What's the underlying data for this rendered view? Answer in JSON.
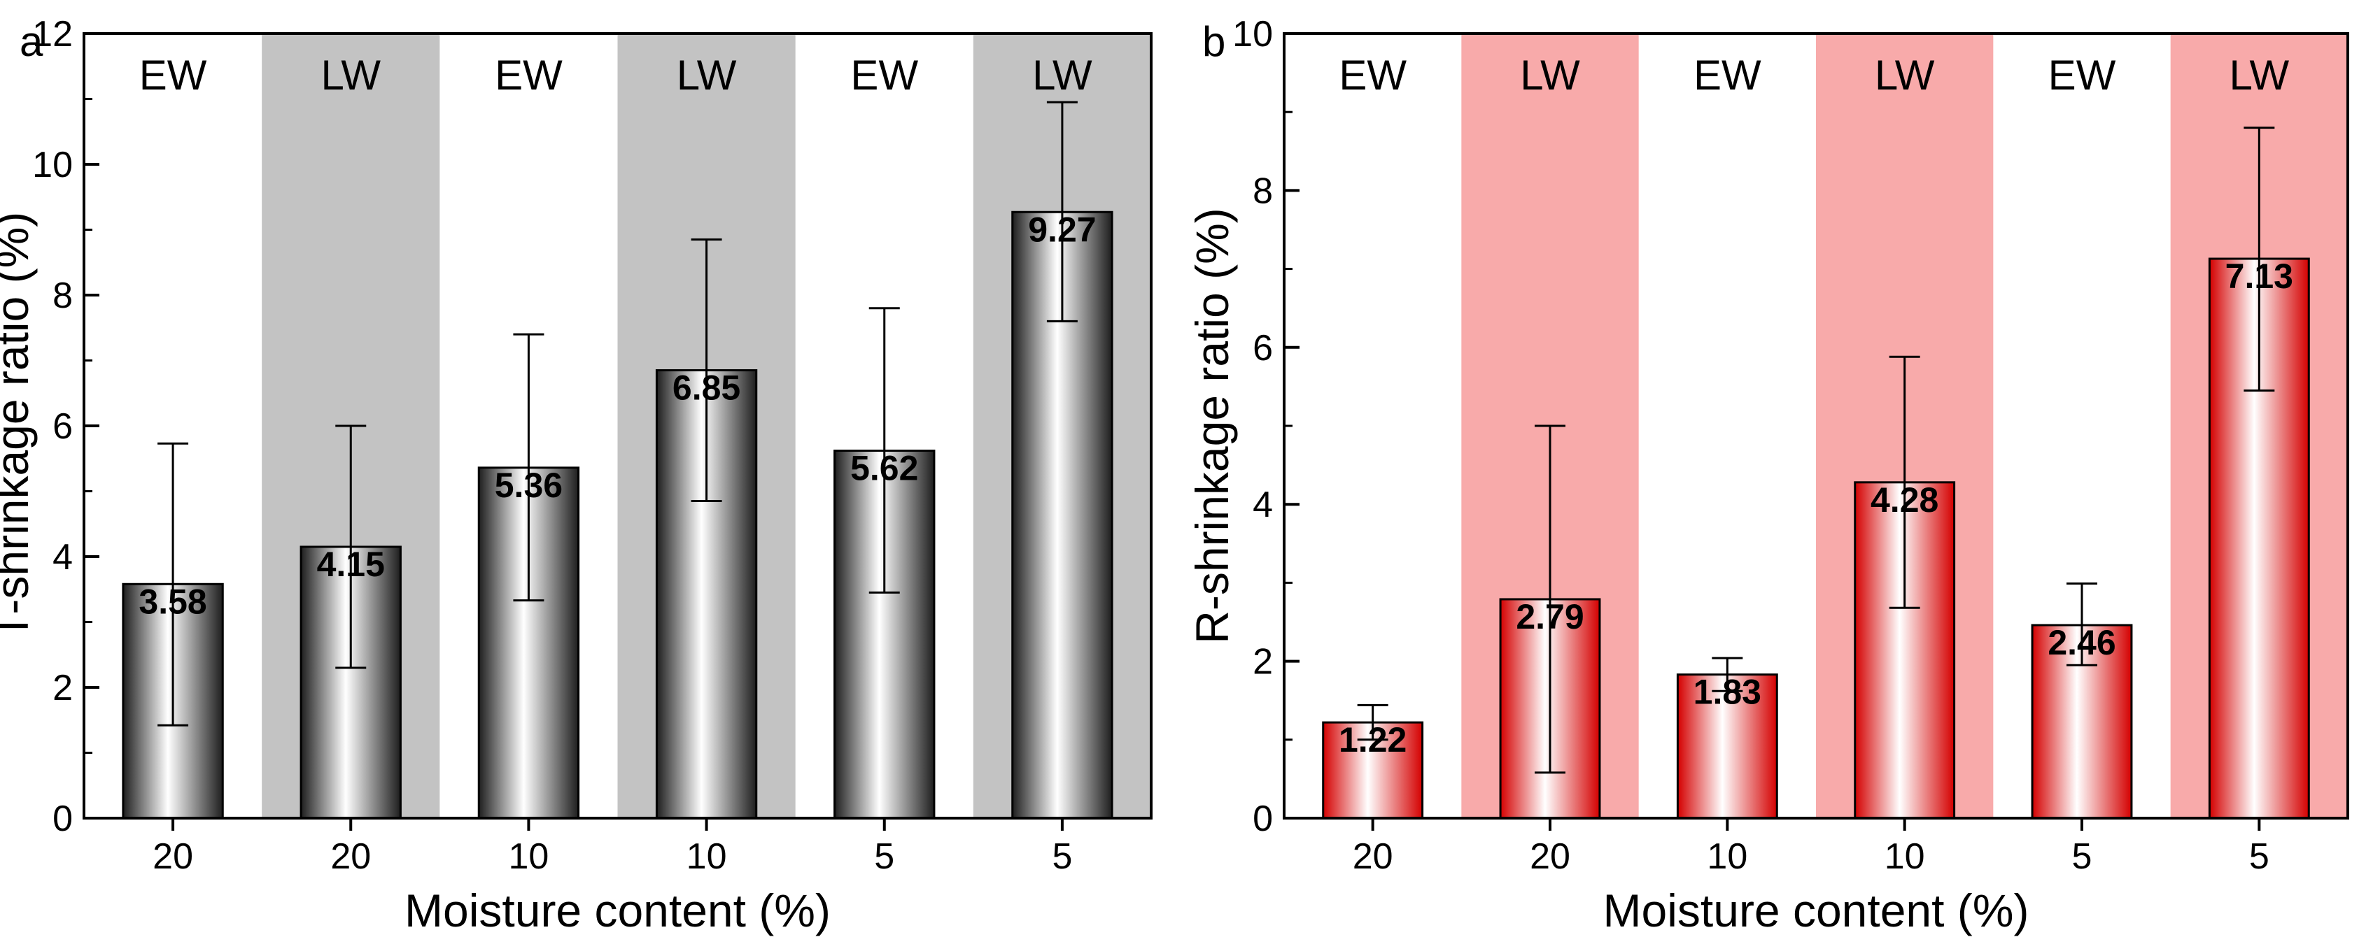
{
  "chart_data": [
    {
      "type": "bar",
      "panel_label": "a",
      "categories": [
        "20",
        "20",
        "10",
        "10",
        "5",
        "5"
      ],
      "band_labels": [
        "EW",
        "LW",
        "EW",
        "LW",
        "EW",
        "LW"
      ],
      "values": [
        3.58,
        4.15,
        5.36,
        6.85,
        5.62,
        9.27
      ],
      "value_labels": [
        "3.58",
        "4.15",
        "5.36",
        "6.85",
        "5.62",
        "9.27"
      ],
      "error_low": [
        1.42,
        2.3,
        3.33,
        4.85,
        3.45,
        7.6
      ],
      "error_high": [
        5.73,
        6.0,
        7.4,
        8.85,
        7.8,
        10.95
      ],
      "xlabel": "Moisture content (%)",
      "ylabel": "T-shrinkage ratio (%)",
      "ylim": [
        0,
        12
      ],
      "yticks": [
        0,
        2,
        4,
        6,
        8,
        10,
        12
      ],
      "bar_color": "#555555",
      "band_color": "#c3c3c3",
      "grid": false
    },
    {
      "type": "bar",
      "panel_label": "b",
      "categories": [
        "20",
        "20",
        "10",
        "10",
        "5",
        "5"
      ],
      "band_labels": [
        "EW",
        "LW",
        "EW",
        "LW",
        "EW",
        "LW"
      ],
      "values": [
        1.22,
        2.79,
        1.83,
        4.28,
        2.46,
        7.13
      ],
      "value_labels": [
        "1.22",
        "2.79",
        "1.83",
        "4.28",
        "2.46",
        "7.13"
      ],
      "error_low": [
        1.0,
        0.58,
        1.62,
        2.68,
        1.95,
        5.45
      ],
      "error_high": [
        1.44,
        5.0,
        2.04,
        5.88,
        2.99,
        8.8
      ],
      "xlabel": "Moisture content (%)",
      "ylabel": "R-shrinkage ratio (%)",
      "ylim": [
        0,
        10
      ],
      "yticks": [
        0,
        2,
        4,
        6,
        8,
        10
      ],
      "bar_color": "#e01010",
      "band_color": "#f8aaaa",
      "grid": false
    }
  ]
}
